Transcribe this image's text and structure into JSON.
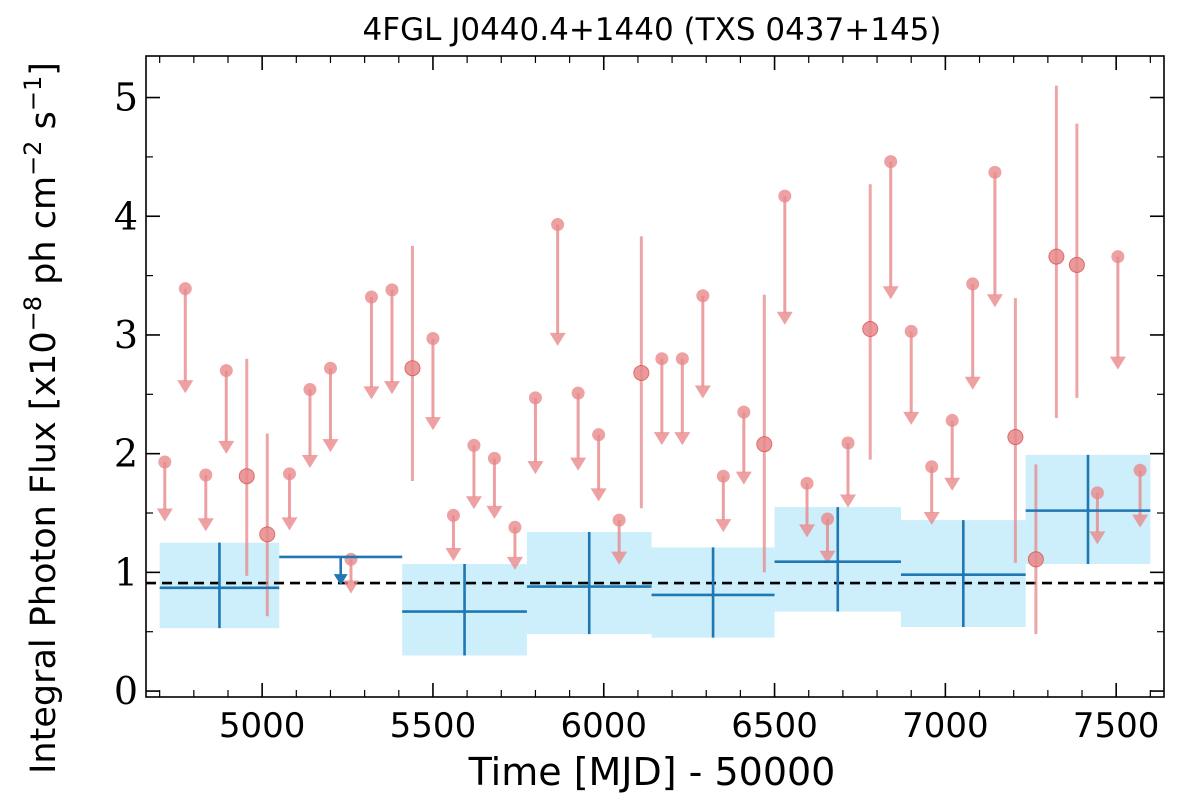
{
  "chart_data": {
    "type": "scatter",
    "title": "4FGL J0440.4+1440 (TXS 0437+145)",
    "xlabel": "Time [MJD] - 50000",
    "ylabel": "Integral Photon Flux [x10",
    "ylabel_exp1": "−8",
    "ylabel_mid": " ph cm",
    "ylabel_exp2": "−2",
    "ylabel_mid2": " s",
    "ylabel_exp3": "−1",
    "ylabel_end": "]",
    "xlim": [
      4660,
      7640
    ],
    "ylim": [
      -0.05,
      5.35
    ],
    "x_ticks": [
      5000,
      5500,
      6000,
      6500,
      7000,
      7500
    ],
    "x_tick_labels": [
      "5000",
      "5500",
      "6000",
      "6500",
      "7000",
      "7500"
    ],
    "y_ticks": [
      0,
      1,
      2,
      3,
      4,
      5
    ],
    "y_tick_labels": [
      "0",
      "1",
      "2",
      "3",
      "4",
      "5"
    ],
    "reference_line": {
      "y": 0.91,
      "style": "dashed",
      "color": "#000000"
    },
    "colors": {
      "fine": "#e8898b",
      "coarse": "#1f77b4",
      "band": "#cdeefb"
    },
    "coarse_bins": [
      {
        "x0": 4700,
        "x1": 5050,
        "y": 0.87,
        "lo": 0.53,
        "hi": 1.25,
        "ul": false
      },
      {
        "x0": 5050,
        "x1": 5410,
        "y": 1.13,
        "ul": true
      },
      {
        "x0": 5410,
        "x1": 5775,
        "y": 0.67,
        "lo": 0.3,
        "hi": 1.07,
        "ul": false
      },
      {
        "x0": 5775,
        "x1": 6140,
        "y": 0.88,
        "lo": 0.48,
        "hi": 1.34,
        "ul": false
      },
      {
        "x0": 6140,
        "x1": 6500,
        "y": 0.81,
        "lo": 0.45,
        "hi": 1.21,
        "ul": false
      },
      {
        "x0": 6500,
        "x1": 6870,
        "y": 1.09,
        "lo": 0.67,
        "hi": 1.55,
        "ul": false
      },
      {
        "x0": 6870,
        "x1": 7235,
        "y": 0.98,
        "lo": 0.54,
        "hi": 1.44,
        "ul": false
      },
      {
        "x0": 7235,
        "x1": 7600,
        "y": 1.52,
        "lo": 1.07,
        "hi": 1.99,
        "ul": false
      }
    ],
    "fine_points": [
      {
        "x": 4715,
        "y": 1.93,
        "ul": true
      },
      {
        "x": 4775,
        "y": 3.39,
        "ul": true
      },
      {
        "x": 4835,
        "y": 1.82,
        "ul": true
      },
      {
        "x": 4895,
        "y": 2.7,
        "ul": true
      },
      {
        "x": 4955,
        "y": 1.81,
        "ul": false,
        "lo": 0.97,
        "hi": 2.8
      },
      {
        "x": 5015,
        "y": 1.32,
        "ul": false,
        "lo": 0.63,
        "hi": 2.17
      },
      {
        "x": 5080,
        "y": 1.83,
        "ul": true
      },
      {
        "x": 5140,
        "y": 2.54,
        "ul": true
      },
      {
        "x": 5200,
        "y": 2.72,
        "ul": true
      },
      {
        "x": 5260,
        "y": 1.11,
        "ul": true
      },
      {
        "x": 5320,
        "y": 3.32,
        "ul": true
      },
      {
        "x": 5380,
        "y": 3.38,
        "ul": true
      },
      {
        "x": 5440,
        "y": 2.72,
        "ul": false,
        "lo": 1.77,
        "hi": 3.75
      },
      {
        "x": 5500,
        "y": 2.97,
        "ul": true
      },
      {
        "x": 5560,
        "y": 1.48,
        "ul": true
      },
      {
        "x": 5620,
        "y": 2.07,
        "ul": true
      },
      {
        "x": 5680,
        "y": 1.96,
        "ul": true
      },
      {
        "x": 5740,
        "y": 1.38,
        "ul": true
      },
      {
        "x": 5800,
        "y": 2.47,
        "ul": true
      },
      {
        "x": 5865,
        "y": 3.93,
        "ul": true
      },
      {
        "x": 5925,
        "y": 2.51,
        "ul": true
      },
      {
        "x": 5985,
        "y": 2.16,
        "ul": true
      },
      {
        "x": 6045,
        "y": 1.44,
        "ul": true
      },
      {
        "x": 6110,
        "y": 2.68,
        "ul": false,
        "lo": 1.54,
        "hi": 3.83
      },
      {
        "x": 6170,
        "y": 2.8,
        "ul": true
      },
      {
        "x": 6230,
        "y": 2.8,
        "ul": true
      },
      {
        "x": 6290,
        "y": 3.33,
        "ul": true
      },
      {
        "x": 6350,
        "y": 1.81,
        "ul": true
      },
      {
        "x": 6410,
        "y": 2.35,
        "ul": true
      },
      {
        "x": 6470,
        "y": 2.08,
        "ul": false,
        "lo": 1.0,
        "hi": 3.34
      },
      {
        "x": 6530,
        "y": 4.17,
        "ul": true
      },
      {
        "x": 6595,
        "y": 1.75,
        "ul": true
      },
      {
        "x": 6655,
        "y": 1.45,
        "ul": true
      },
      {
        "x": 6715,
        "y": 2.09,
        "ul": true
      },
      {
        "x": 6780,
        "y": 3.05,
        "ul": false,
        "lo": 1.95,
        "hi": 4.27
      },
      {
        "x": 6840,
        "y": 4.46,
        "ul": true
      },
      {
        "x": 6900,
        "y": 3.03,
        "ul": true
      },
      {
        "x": 6960,
        "y": 1.89,
        "ul": true
      },
      {
        "x": 7020,
        "y": 2.28,
        "ul": true
      },
      {
        "x": 7080,
        "y": 3.43,
        "ul": true
      },
      {
        "x": 7145,
        "y": 4.37,
        "ul": true
      },
      {
        "x": 7205,
        "y": 2.14,
        "ul": false,
        "lo": 1.08,
        "hi": 3.31
      },
      {
        "x": 7265,
        "y": 1.11,
        "ul": false,
        "lo": 0.48,
        "hi": 1.91
      },
      {
        "x": 7325,
        "y": 3.66,
        "ul": false,
        "lo": 2.3,
        "hi": 5.1
      },
      {
        "x": 7385,
        "y": 3.59,
        "ul": false,
        "lo": 2.47,
        "hi": 4.78
      },
      {
        "x": 7445,
        "y": 1.67,
        "ul": true
      },
      {
        "x": 7505,
        "y": 3.66,
        "ul": true
      },
      {
        "x": 7570,
        "y": 1.86,
        "ul": true
      }
    ]
  }
}
